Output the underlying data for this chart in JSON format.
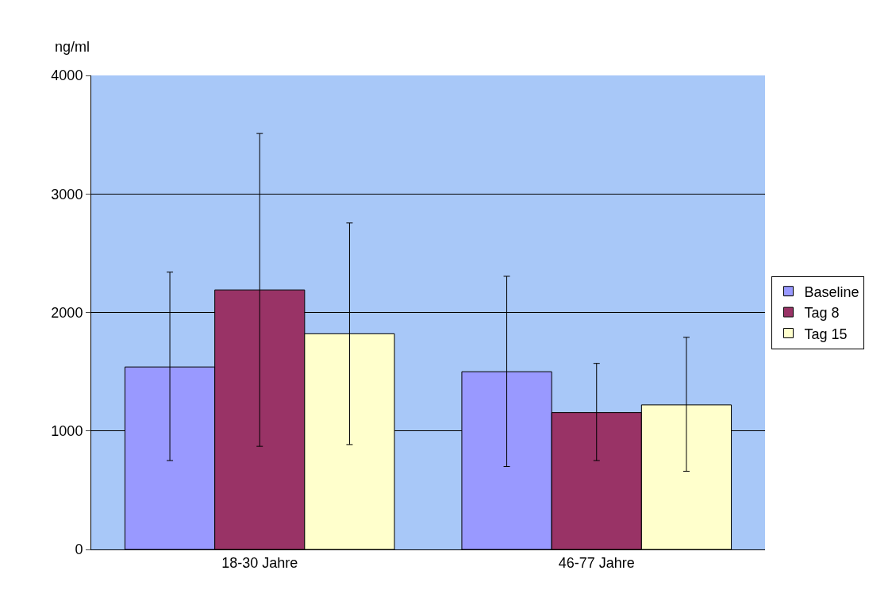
{
  "chart_data": {
    "type": "bar",
    "ylabel": "ng/ml",
    "categories": [
      "18-30 Jahre",
      "46-77 Jahre"
    ],
    "series": [
      {
        "name": "Baseline",
        "color": "#9999ff",
        "values": [
          1540,
          1500
        ],
        "errors": [
          [
            750,
            2340
          ],
          [
            700,
            2305
          ]
        ]
      },
      {
        "name": "Tag 8",
        "color": "#993366",
        "values": [
          2190,
          1155
        ],
        "errors": [
          [
            870,
            3510
          ],
          [
            750,
            1570
          ]
        ]
      },
      {
        "name": "Tag 15",
        "color": "#ffffcc",
        "values": [
          1820,
          1220
        ],
        "errors": [
          [
            885,
            2755
          ],
          [
            660,
            1790
          ]
        ]
      }
    ],
    "ylim": [
      0,
      4000
    ],
    "yticks": [
      0,
      1000,
      2000,
      3000,
      4000
    ],
    "grid": "y",
    "legend": "right"
  }
}
